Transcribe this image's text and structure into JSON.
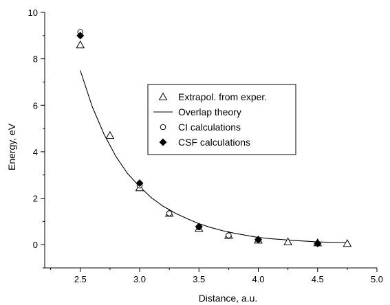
{
  "chart_data": {
    "type": "scatter",
    "xlabel": "Distance, a.u.",
    "ylabel": "Energy, eV",
    "xlim": [
      2.2,
      5.0
    ],
    "ylim": [
      -1,
      10
    ],
    "x_ticks": [
      2.5,
      3.0,
      3.5,
      4.0,
      4.5,
      5.0
    ],
    "x_tick_labels": [
      "2.5",
      "3.0",
      "3.5",
      "4.0",
      "4.5",
      "5.0"
    ],
    "y_ticks": [
      0,
      2,
      4,
      6,
      8,
      10
    ],
    "y_tick_labels": [
      "0",
      "2",
      "4",
      "6",
      "8",
      "10"
    ],
    "grid": false,
    "legend_position": "upper-right",
    "series": [
      {
        "name": "Extrapol. from exper.",
        "marker": "open-triangle",
        "x": [
          2.5,
          2.75,
          3.0,
          3.25,
          3.5,
          3.75,
          4.0,
          4.25,
          4.5,
          4.75
        ],
        "y": [
          8.6,
          4.7,
          2.45,
          1.35,
          0.7,
          0.4,
          0.2,
          0.12,
          0.08,
          0.05
        ]
      },
      {
        "name": "Overlap theory",
        "marker": "line",
        "x": [
          2.5,
          2.6,
          2.7,
          2.8,
          2.9,
          3.0,
          3.1,
          3.2,
          3.3,
          3.4,
          3.5,
          3.6,
          3.7,
          3.8,
          3.9,
          4.0,
          4.1,
          4.2,
          4.3,
          4.4,
          4.5,
          4.6,
          4.75
        ],
        "y": [
          7.5,
          5.95,
          4.75,
          3.8,
          3.05,
          2.5,
          2.02,
          1.65,
          1.36,
          1.12,
          0.9,
          0.74,
          0.6,
          0.49,
          0.4,
          0.31,
          0.26,
          0.22,
          0.18,
          0.15,
          0.12,
          0.1,
          0.08
        ]
      },
      {
        "name": "CI calculations",
        "marker": "open-circle",
        "x": [
          2.5,
          3.0,
          3.25,
          3.5,
          3.75,
          4.0,
          4.5
        ],
        "y": [
          9.15,
          2.55,
          1.35,
          0.75,
          0.4,
          0.22,
          0.05
        ]
      },
      {
        "name": "CSF calculations",
        "marker": "filled-diamond",
        "x": [
          2.5,
          3.0,
          3.5,
          4.0,
          4.5
        ],
        "y": [
          9.0,
          2.65,
          0.78,
          0.22,
          0.05
        ]
      }
    ]
  }
}
